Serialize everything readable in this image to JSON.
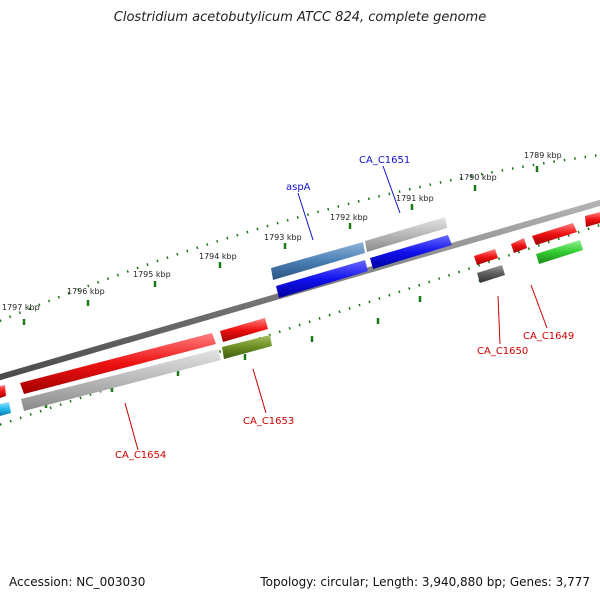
{
  "title": "Clostridium acetobutylicum ATCC 824, complete genome",
  "footer": {
    "accession": "Accession: NC_003030",
    "summary": "Topology: circular; Length: 3,940,880 bp; Genes: 3,777"
  },
  "ticks": [
    "1789 kbp",
    "1790 kbp",
    "1791 kbp",
    "1792 kbp",
    "1793 kbp",
    "1794 kbp",
    "1795 kbp",
    "1796 kbp",
    "1797 kbp"
  ],
  "genes": [
    {
      "label": "aspA",
      "color": "#1111cc"
    },
    {
      "label": "CA_C1651",
      "color": "#1111cc"
    },
    {
      "label": "CA_C1650",
      "color": "#cc0000"
    },
    {
      "label": "CA_C1649",
      "color": "#cc0000"
    },
    {
      "label": "CA_C1653",
      "color": "#cc0000"
    },
    {
      "label": "CA_C1654",
      "color": "#cc0000"
    }
  ],
  "colors": {
    "red": "#ee1111",
    "blue": "#1111ee",
    "steelblue": "#4a7fb5",
    "gray": "#b0b0b0",
    "darkgray": "#5a5a5a",
    "olive": "#6b8e23",
    "green": "#33cc33",
    "cyan": "#22bbee",
    "tick": "#1a7a1a",
    "backbone": "#7a7a7a"
  }
}
